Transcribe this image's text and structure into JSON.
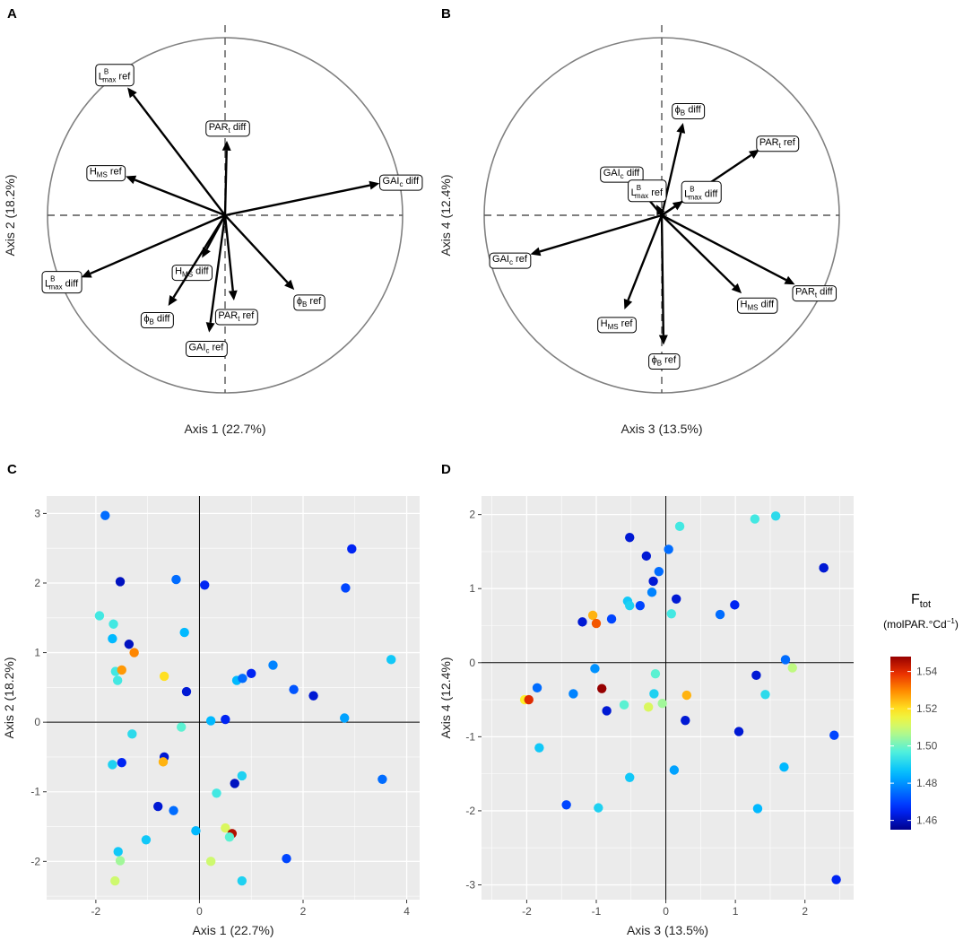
{
  "chart_data": [
    {
      "panel": "A",
      "type": "correlation-circle",
      "xlabel": "Axis 1 (22.7%)",
      "ylabel": "Axis 2 (18.2%)",
      "xlim": [
        -1,
        1
      ],
      "ylim": [
        -1,
        1
      ],
      "arrows": [
        {
          "label": "L",
          "sup": "B",
          "sub": "max",
          "suffix": " ref",
          "x": -0.55,
          "y": 0.72
        },
        {
          "label": "H",
          "sub": "MS",
          "suffix": " ref",
          "x": -0.56,
          "y": 0.22
        },
        {
          "label": "PAR",
          "sub": "t",
          "suffix": " diff",
          "x": 0.01,
          "y": 0.42
        },
        {
          "label": "GAI",
          "sub": "c",
          "suffix": " diff",
          "x": 0.87,
          "y": 0.18
        },
        {
          "label": "L",
          "sup": "B",
          "sub": "max",
          "suffix": " diff",
          "x": -0.81,
          "y": -0.35
        },
        {
          "label": "H",
          "sub": "MS",
          "suffix": " diff",
          "x": -0.13,
          "y": -0.24
        },
        {
          "label": "ϕ",
          "sub": "B",
          "suffix": " diff",
          "x": -0.32,
          "y": -0.51
        },
        {
          "label": "PAR",
          "sub": "t",
          "suffix": " ref",
          "x": 0.05,
          "y": -0.48
        },
        {
          "label": "GAI",
          "sub": "c",
          "suffix": " ref",
          "x": -0.09,
          "y": -0.66
        },
        {
          "label": "ϕ",
          "sub": "B",
          "suffix": " ref",
          "x": 0.39,
          "y": -0.42
        }
      ]
    },
    {
      "panel": "B",
      "type": "correlation-circle",
      "xlabel": "Axis 3 (13.5%)",
      "ylabel": "Axis 4 (12.4%)",
      "xlim": [
        -1,
        1
      ],
      "ylim": [
        -1,
        1
      ],
      "arrows": [
        {
          "label": "ϕ",
          "sub": "B",
          "suffix": " diff",
          "x": 0.12,
          "y": 0.52
        },
        {
          "label": "PAR",
          "sub": "t",
          "suffix": " ref",
          "x": 0.55,
          "y": 0.37
        },
        {
          "label": "GAI",
          "sub": "c",
          "suffix": " diff",
          "x": -0.15,
          "y": 0.18
        },
        {
          "label": "L",
          "sup": "B",
          "sub": "max",
          "suffix": " diff",
          "x": 0.12,
          "y": 0.08
        },
        {
          "label": "L",
          "sup": "B",
          "sub": "max",
          "suffix": " ref",
          "x": -0.03,
          "y": 0.06
        },
        {
          "label": "GAI",
          "sub": "c",
          "suffix": " ref",
          "x": -0.74,
          "y": -0.22
        },
        {
          "label": "H",
          "sub": "MS",
          "suffix": " ref",
          "x": -0.21,
          "y": -0.53
        },
        {
          "label": "ϕ",
          "sub": "B",
          "suffix": " ref",
          "x": 0.01,
          "y": -0.73
        },
        {
          "label": "H",
          "sub": "MS",
          "suffix": " diff",
          "x": 0.45,
          "y": -0.44
        },
        {
          "label": "PAR",
          "sub": "t",
          "suffix": " diff",
          "x": 0.75,
          "y": -0.39
        }
      ]
    },
    {
      "panel": "C",
      "type": "scatter",
      "xlabel": "Axis 1 (22.7%)",
      "ylabel": "Axis 2 (18.2%)",
      "xlim": [
        -2.95,
        4.25
      ],
      "ylim": [
        -2.55,
        3.25
      ],
      "xticks": [
        -2,
        0,
        2,
        4
      ],
      "yticks": [
        -2,
        -1,
        0,
        1,
        2,
        3
      ],
      "points": [
        {
          "x": -1.82,
          "y": 2.97,
          "f": 1.475
        },
        {
          "x": -1.53,
          "y": 2.02,
          "f": 1.46
        },
        {
          "x": -0.45,
          "y": 2.05,
          "f": 1.475
        },
        {
          "x": 0.1,
          "y": 1.97,
          "f": 1.465
        },
        {
          "x": -1.93,
          "y": 1.53,
          "f": 1.495
        },
        {
          "x": -1.66,
          "y": 1.41,
          "f": 1.495
        },
        {
          "x": -1.68,
          "y": 1.2,
          "f": 1.485
        },
        {
          "x": -1.36,
          "y": 1.12,
          "f": 1.46
        },
        {
          "x": -1.26,
          "y": 1.0,
          "f": 1.53
        },
        {
          "x": -0.29,
          "y": 1.29,
          "f": 1.485
        },
        {
          "x": -1.62,
          "y": 0.73,
          "f": 1.495
        },
        {
          "x": -1.58,
          "y": 0.6,
          "f": 1.495
        },
        {
          "x": -1.5,
          "y": 0.75,
          "f": 1.528
        },
        {
          "x": -0.68,
          "y": 0.66,
          "f": 1.52
        },
        {
          "x": -0.25,
          "y": 0.44,
          "f": 1.462
        },
        {
          "x": 0.72,
          "y": 0.6,
          "f": 1.485
        },
        {
          "x": 0.83,
          "y": 0.63,
          "f": 1.475
        },
        {
          "x": 1.0,
          "y": 0.7,
          "f": 1.465
        },
        {
          "x": 1.42,
          "y": 0.82,
          "f": 1.478
        },
        {
          "x": 1.82,
          "y": 0.47,
          "f": 1.472
        },
        {
          "x": 2.2,
          "y": 0.38,
          "f": 1.462
        },
        {
          "x": 2.82,
          "y": 1.93,
          "f": 1.47
        },
        {
          "x": 2.94,
          "y": 2.49,
          "f": 1.465
        },
        {
          "x": 3.7,
          "y": 0.9,
          "f": 1.488
        },
        {
          "x": 2.8,
          "y": 0.06,
          "f": 1.482
        },
        {
          "x": 0.5,
          "y": 0.04,
          "f": 1.465
        },
        {
          "x": 0.22,
          "y": 0.02,
          "f": 1.485
        },
        {
          "x": -0.35,
          "y": -0.07,
          "f": 1.498
        },
        {
          "x": -1.3,
          "y": -0.17,
          "f": 1.492
        },
        {
          "x": -1.68,
          "y": -0.61,
          "f": 1.49
        },
        {
          "x": -1.5,
          "y": -0.58,
          "f": 1.465
        },
        {
          "x": -0.68,
          "y": -0.5,
          "f": 1.462
        },
        {
          "x": -0.7,
          "y": -0.57,
          "f": 1.525
        },
        {
          "x": 0.82,
          "y": -0.77,
          "f": 1.49
        },
        {
          "x": 0.68,
          "y": -0.88,
          "f": 1.46
        },
        {
          "x": 0.33,
          "y": -1.02,
          "f": 1.495
        },
        {
          "x": 3.53,
          "y": -0.82,
          "f": 1.475
        },
        {
          "x": -0.8,
          "y": -1.21,
          "f": 1.462
        },
        {
          "x": -0.5,
          "y": -1.27,
          "f": 1.475
        },
        {
          "x": -0.07,
          "y": -1.56,
          "f": 1.485
        },
        {
          "x": 0.5,
          "y": -1.52,
          "f": 1.512
        },
        {
          "x": 0.63,
          "y": -1.6,
          "f": 1.545
        },
        {
          "x": 0.58,
          "y": -1.65,
          "f": 1.498
        },
        {
          "x": -1.03,
          "y": -1.69,
          "f": 1.488
        },
        {
          "x": -1.57,
          "y": -1.86,
          "f": 1.488
        },
        {
          "x": -1.53,
          "y": -1.99,
          "f": 1.505
        },
        {
          "x": 0.22,
          "y": -2.0,
          "f": 1.51
        },
        {
          "x": 1.68,
          "y": -1.96,
          "f": 1.47
        },
        {
          "x": -1.63,
          "y": -2.28,
          "f": 1.51
        },
        {
          "x": 0.82,
          "y": -2.28,
          "f": 1.49
        }
      ]
    },
    {
      "panel": "D",
      "type": "scatter",
      "xlabel": "Axis 3 (13.5%)",
      "ylabel": "Axis 4 (12.4%)",
      "xlim": [
        -2.65,
        2.7
      ],
      "ylim": [
        -3.2,
        2.25
      ],
      "xticks": [
        -2,
        -1,
        0,
        1,
        2
      ],
      "yticks": [
        -3,
        -2,
        -1,
        0,
        1,
        2
      ],
      "points": [
        {
          "x": 1.28,
          "y": 1.94,
          "f": 1.495
        },
        {
          "x": 1.58,
          "y": 1.98,
          "f": 1.492
        },
        {
          "x": 0.2,
          "y": 1.84,
          "f": 1.495
        },
        {
          "x": -0.52,
          "y": 1.69,
          "f": 1.462
        },
        {
          "x": 0.04,
          "y": 1.53,
          "f": 1.475
        },
        {
          "x": -0.28,
          "y": 1.44,
          "f": 1.462
        },
        {
          "x": -0.1,
          "y": 1.23,
          "f": 1.475
        },
        {
          "x": -0.18,
          "y": 1.1,
          "f": 1.462
        },
        {
          "x": 2.27,
          "y": 1.28,
          "f": 1.462
        },
        {
          "x": 0.15,
          "y": 0.86,
          "f": 1.462
        },
        {
          "x": -0.2,
          "y": 0.95,
          "f": 1.478
        },
        {
          "x": -0.55,
          "y": 0.83,
          "f": 1.488
        },
        {
          "x": -0.52,
          "y": 0.77,
          "f": 1.49
        },
        {
          "x": -0.37,
          "y": 0.77,
          "f": 1.47
        },
        {
          "x": 0.99,
          "y": 0.78,
          "f": 1.465
        },
        {
          "x": 0.78,
          "y": 0.65,
          "f": 1.475
        },
        {
          "x": 0.08,
          "y": 0.66,
          "f": 1.495
        },
        {
          "x": -0.78,
          "y": 0.59,
          "f": 1.47
        },
        {
          "x": -1.2,
          "y": 0.55,
          "f": 1.462
        },
        {
          "x": -1.05,
          "y": 0.64,
          "f": 1.525
        },
        {
          "x": -1.0,
          "y": 0.53,
          "f": 1.535
        },
        {
          "x": 1.72,
          "y": 0.04,
          "f": 1.475
        },
        {
          "x": 1.82,
          "y": -0.07,
          "f": 1.508
        },
        {
          "x": 2.27,
          "y": 1.28,
          "f": 1.462
        },
        {
          "x": -1.02,
          "y": -0.08,
          "f": 1.48
        },
        {
          "x": -0.15,
          "y": -0.15,
          "f": 1.498
        },
        {
          "x": 1.3,
          "y": -0.17,
          "f": 1.462
        },
        {
          "x": 1.43,
          "y": -0.43,
          "f": 1.492
        },
        {
          "x": -0.92,
          "y": -0.35,
          "f": 1.548
        },
        {
          "x": -1.85,
          "y": -0.34,
          "f": 1.475
        },
        {
          "x": -1.33,
          "y": -0.42,
          "f": 1.478
        },
        {
          "x": -0.17,
          "y": -0.42,
          "f": 1.49
        },
        {
          "x": 0.3,
          "y": -0.44,
          "f": 1.525
        },
        {
          "x": -2.03,
          "y": -0.5,
          "f": 1.518
        },
        {
          "x": -1.97,
          "y": -0.5,
          "f": 1.54
        },
        {
          "x": -0.6,
          "y": -0.57,
          "f": 1.498
        },
        {
          "x": -0.25,
          "y": -0.6,
          "f": 1.512
        },
        {
          "x": -0.05,
          "y": -0.55,
          "f": 1.505
        },
        {
          "x": -0.85,
          "y": -0.65,
          "f": 1.462
        },
        {
          "x": 0.28,
          "y": -0.78,
          "f": 1.462
        },
        {
          "x": 1.05,
          "y": -0.93,
          "f": 1.462
        },
        {
          "x": 2.42,
          "y": -0.98,
          "f": 1.47
        },
        {
          "x": -1.82,
          "y": -1.15,
          "f": 1.488
        },
        {
          "x": 0.12,
          "y": -1.45,
          "f": 1.482
        },
        {
          "x": 1.7,
          "y": -1.41,
          "f": 1.485
        },
        {
          "x": -0.52,
          "y": -1.55,
          "f": 1.488
        },
        {
          "x": -1.43,
          "y": -1.92,
          "f": 1.47
        },
        {
          "x": -0.97,
          "y": -1.96,
          "f": 1.49
        },
        {
          "x": 1.32,
          "y": -1.97,
          "f": 1.485
        },
        {
          "x": 2.45,
          "y": -2.93,
          "f": 1.465
        }
      ]
    }
  ],
  "legend": {
    "title_main": "F",
    "title_sub": "tot",
    "units_main": "(molPAR.°Cd",
    "units_sup": "−1",
    "units_close": ")",
    "min": 1.455,
    "max": 1.548,
    "ticks": [
      1.46,
      1.48,
      1.5,
      1.52,
      1.54
    ],
    "tick_labels": [
      "1.46",
      "1.48",
      "1.50",
      "1.52",
      "1.54"
    ]
  }
}
